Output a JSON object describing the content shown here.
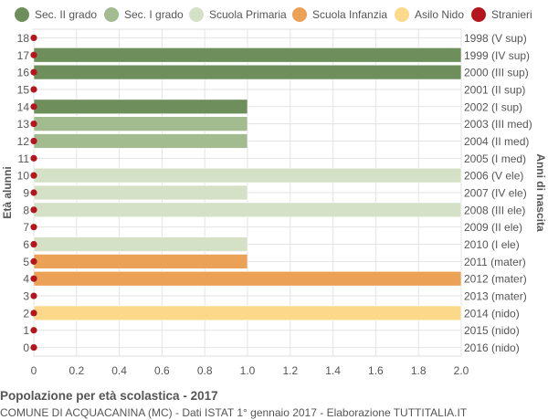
{
  "colors": {
    "sec2": "#6e8f5b",
    "sec1": "#a2bb8f",
    "primaria": "#d5e1c6",
    "infanzia": "#eba156",
    "nido": "#fcd98a",
    "stranieri": "#b3161c"
  },
  "legend": [
    {
      "label": "Sec. II grado",
      "color_key": "sec2"
    },
    {
      "label": "Sec. I grado",
      "color_key": "sec1"
    },
    {
      "label": "Scuola Primaria",
      "color_key": "primaria"
    },
    {
      "label": "Scuola Infanzia",
      "color_key": "infanzia"
    },
    {
      "label": "Asilo Nido",
      "color_key": "nido"
    },
    {
      "label": "Stranieri",
      "color_key": "stranieri"
    }
  ],
  "chart_data": {
    "type": "bar",
    "orientation": "horizontal",
    "ylabel_left": "Età alunni",
    "ylabel_right": "Anni di nascita",
    "xlim": [
      0,
      2.0
    ],
    "xticks": [
      "0",
      "0.2",
      "0.4",
      "0.6",
      "0.8",
      "1.0",
      "1.2",
      "1.4",
      "1.6",
      "1.8",
      "2.0"
    ],
    "tick_values": [
      0,
      0.2,
      0.4,
      0.6,
      0.8,
      1.0,
      1.2,
      1.4,
      1.6,
      1.8,
      2.0
    ],
    "grid": true,
    "rows": [
      {
        "age": "18",
        "year": "1998 (V sup)",
        "value": 0,
        "category": "sec2",
        "stranieri": 0
      },
      {
        "age": "17",
        "year": "1999 (IV sup)",
        "value": 2,
        "category": "sec2",
        "stranieri": 0
      },
      {
        "age": "16",
        "year": "2000 (III sup)",
        "value": 2,
        "category": "sec2",
        "stranieri": 0
      },
      {
        "age": "15",
        "year": "2001 (II sup)",
        "value": 0,
        "category": "sec2",
        "stranieri": 0
      },
      {
        "age": "14",
        "year": "2002 (I sup)",
        "value": 1,
        "category": "sec2",
        "stranieri": 0
      },
      {
        "age": "13",
        "year": "2003 (III med)",
        "value": 1,
        "category": "sec1",
        "stranieri": 0
      },
      {
        "age": "12",
        "year": "2004 (II med)",
        "value": 1,
        "category": "sec1",
        "stranieri": 0
      },
      {
        "age": "11",
        "year": "2005 (I med)",
        "value": 0,
        "category": "sec1",
        "stranieri": 0
      },
      {
        "age": "10",
        "year": "2006 (V ele)",
        "value": 2,
        "category": "primaria",
        "stranieri": 0
      },
      {
        "age": "9",
        "year": "2007 (IV ele)",
        "value": 1,
        "category": "primaria",
        "stranieri": 0
      },
      {
        "age": "8",
        "year": "2008 (III ele)",
        "value": 2,
        "category": "primaria",
        "stranieri": 0
      },
      {
        "age": "7",
        "year": "2009 (II ele)",
        "value": 0,
        "category": "primaria",
        "stranieri": 0
      },
      {
        "age": "6",
        "year": "2010 (I ele)",
        "value": 1,
        "category": "primaria",
        "stranieri": 0
      },
      {
        "age": "5",
        "year": "2011 (mater)",
        "value": 1,
        "category": "infanzia",
        "stranieri": 0
      },
      {
        "age": "4",
        "year": "2012 (mater)",
        "value": 2,
        "category": "infanzia",
        "stranieri": 0
      },
      {
        "age": "3",
        "year": "2013 (mater)",
        "value": 0,
        "category": "infanzia",
        "stranieri": 0
      },
      {
        "age": "2",
        "year": "2014 (nido)",
        "value": 2,
        "category": "nido",
        "stranieri": 0
      },
      {
        "age": "1",
        "year": "2015 (nido)",
        "value": 0,
        "category": "nido",
        "stranieri": 0
      },
      {
        "age": "0",
        "year": "2016 (nido)",
        "value": 0,
        "category": "nido",
        "stranieri": 0
      }
    ]
  },
  "footer": {
    "title": "Popolazione per età scolastica - 2017",
    "subtitle": "COMUNE DI ACQUACANINA (MC) - Dati ISTAT 1° gennaio 2017 - Elaborazione TUTTITALIA.IT"
  }
}
